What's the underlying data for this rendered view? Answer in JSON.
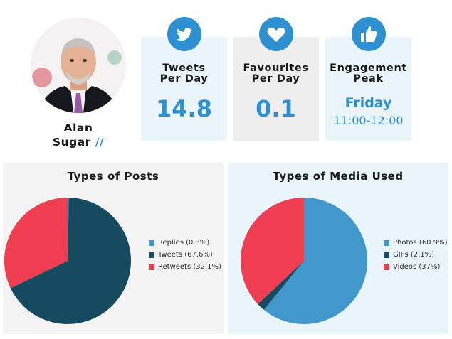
{
  "profile": {
    "name_line1": "Alan",
    "name_line2": "Sugar",
    "slash": "//"
  },
  "stats": [
    {
      "label_line1": "Tweets",
      "label_line2": "Per Day",
      "value": "14.8",
      "icon": "twitter-bird-icon"
    },
    {
      "label_line1": "Favourites",
      "label_line2": "Per Day",
      "value": "0.1",
      "icon": "heart-icon"
    },
    {
      "label_line1": "Engagement",
      "label_line2": "Peak",
      "day": "Friday",
      "time": "11:00-12:00",
      "icon": "thumbs-up-icon"
    }
  ],
  "colors": {
    "accent": "#2e90d0",
    "stat_bg": "#eaf4fb",
    "stat_bg_gray": "#eeeeee",
    "panel_posts_bg": "#f3f3f3",
    "panel_media_bg": "#eaf4fb"
  },
  "chart_data": [
    {
      "type": "pie",
      "title": "Types of Posts",
      "legend_position": "right",
      "labels": [
        "Replies (0.3%)",
        "Tweets (67.6%)",
        "Retweets (32.1%)"
      ],
      "categories": [
        "Replies",
        "Tweets",
        "Retweets"
      ],
      "values": [
        0.3,
        67.6,
        32.1
      ],
      "colors": [
        "#4298cc",
        "#164a5e",
        "#ef3d52"
      ]
    },
    {
      "type": "pie",
      "title": "Types of Media Used",
      "legend_position": "right",
      "labels": [
        "Photos (60.9%)",
        "GIFs (2.1%)",
        "Videos (37%)"
      ],
      "categories": [
        "Photos",
        "GIFs",
        "Videos"
      ],
      "values": [
        60.9,
        2.1,
        37
      ],
      "colors": [
        "#4298cc",
        "#164a5e",
        "#ef3d52"
      ]
    }
  ]
}
